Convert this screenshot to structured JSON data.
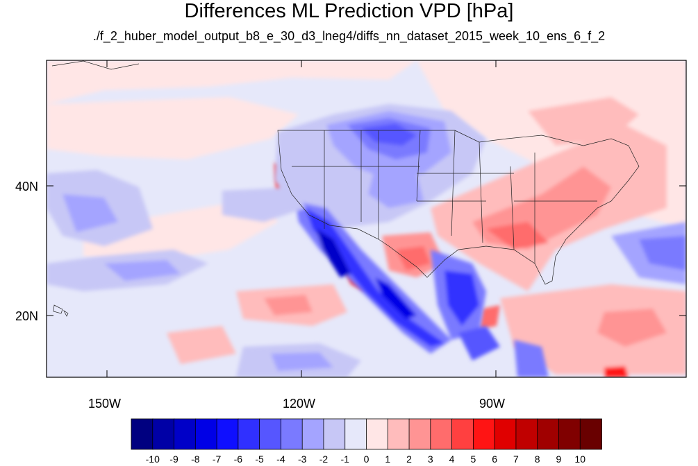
{
  "title": "Differences ML Prediction VPD [hPa]",
  "subtitle": "./f_2_huber_model_output_b8_e_30_d3_lneg4/diffs_nn_dataset_2015_week_10_ens_6_f_2",
  "map": {
    "lon_range": [
      -160,
      -62
    ],
    "lat_range": [
      11,
      60
    ],
    "x_ticks": [
      "150W",
      "120W",
      "90W"
    ],
    "y_ticks": [
      "40N",
      "20N"
    ],
    "background_color": "#e6e8fa"
  },
  "colorbar": {
    "levels": [
      "-10",
      "-9",
      "-8",
      "-7",
      "-6",
      "-5",
      "-4",
      "-3",
      "-2",
      "-1",
      "0",
      "1",
      "2",
      "3",
      "4",
      "5",
      "6",
      "7",
      "8",
      "9",
      "10"
    ],
    "colors": [
      "#000080",
      "#0000a6",
      "#0000c8",
      "#0000e6",
      "#0f0fff",
      "#3030ff",
      "#5656ff",
      "#7a7aff",
      "#a4a4ff",
      "#c7c7f6",
      "#e6e8fa",
      "#ffe6e6",
      "#ffbcbc",
      "#ff9494",
      "#ff6c6c",
      "#ff4040",
      "#ff1414",
      "#e00000",
      "#c00000",
      "#a00000",
      "#800000",
      "#690000"
    ]
  }
}
